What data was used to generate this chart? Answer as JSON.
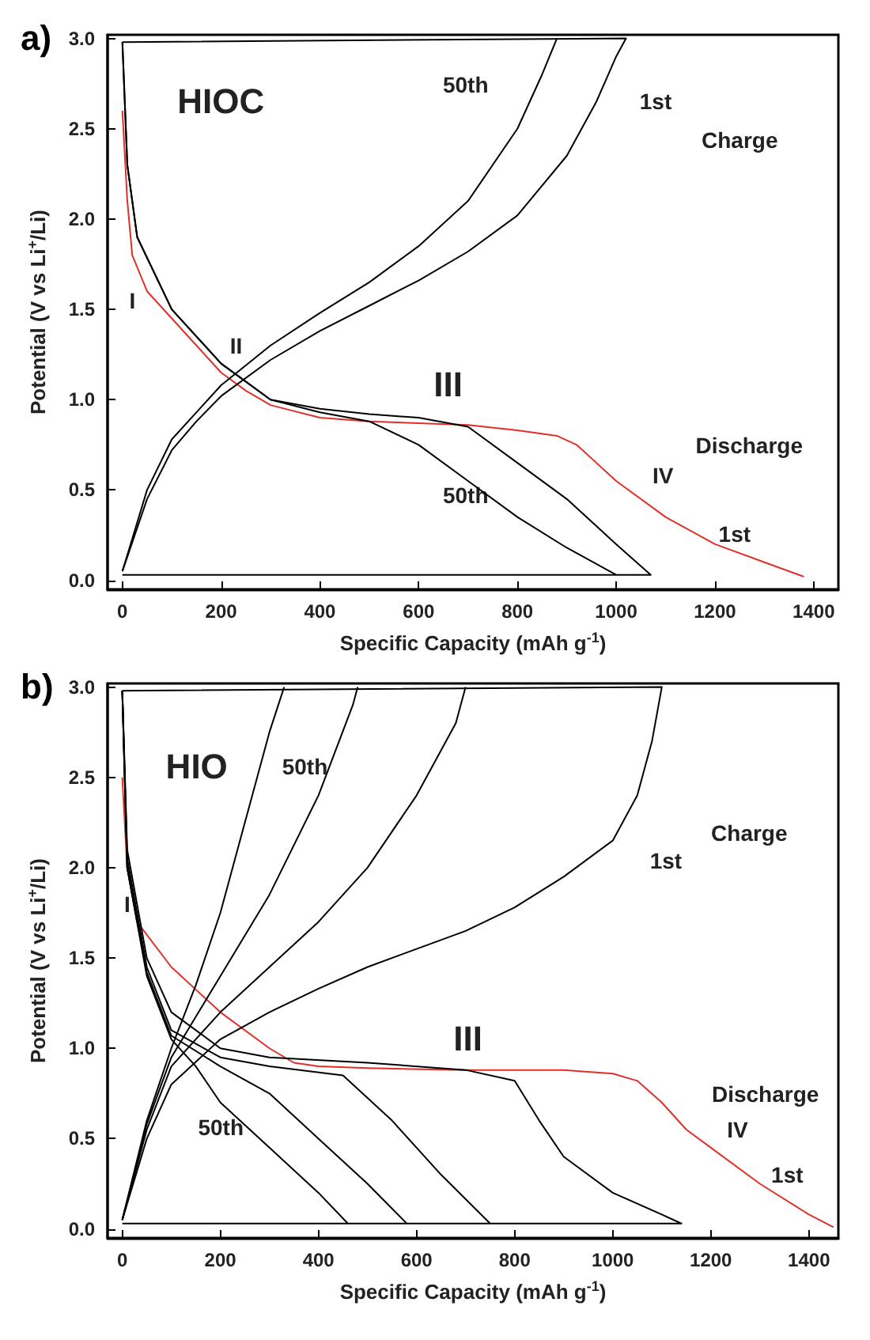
{
  "chart_data": [
    {
      "type": "line",
      "title": "a)",
      "xlabel": "Specific Capacity (mAh g$^{-1}$)",
      "ylabel": "Potential (V vs Li$^{+}$/Li)",
      "xlim": [
        -30,
        1450
      ],
      "ylim": [
        -0.05,
        3.02
      ],
      "xticks": [
        0,
        200,
        400,
        600,
        800,
        1000,
        1200,
        1400
      ],
      "yticks": [
        {
          "value": 0,
          "label": "0.0"
        },
        {
          "value": 0.5,
          "label": "0.5"
        },
        {
          "value": 1,
          "label": "1.0"
        },
        {
          "value": 1.5,
          "label": "1.5"
        },
        {
          "value": 2,
          "label": "2.0"
        },
        {
          "value": 2.5,
          "label": "2.5"
        },
        {
          "value": 3,
          "label": "3.0"
        }
      ],
      "grid": false,
      "marker": "none",
      "line_style": "solid",
      "series": [
        {
          "color": "#e0302a",
          "x": [
            0,
            10,
            20,
            50,
            100,
            150,
            200,
            250,
            300,
            400,
            500,
            600,
            700,
            800,
            880,
            920,
            1000,
            1100,
            1200,
            1300,
            1380
          ],
          "values": [
            2.6,
            2.1,
            1.8,
            1.6,
            1.45,
            1.3,
            1.15,
            1.05,
            0.97,
            0.9,
            0.88,
            0.87,
            0.86,
            0.83,
            0.8,
            0.75,
            0.55,
            0.35,
            0.2,
            0.1,
            0.02
          ]
        },
        {
          "color": "#000000",
          "x": [
            0,
            50,
            100,
            150,
            200,
            300,
            400,
            500,
            600,
            700,
            800,
            900,
            960,
            1000,
            1020,
            0
          ],
          "values": [
            0.05,
            0.45,
            0.72,
            0.88,
            1.02,
            1.22,
            1.38,
            1.52,
            1.66,
            1.82,
            2.02,
            2.35,
            2.65,
            2.9,
            3.0,
            2.98
          ]
        },
        {
          "color": "#000000",
          "x": [
            0,
            50,
            100,
            200,
            300,
            400,
            500,
            600,
            700,
            800,
            850,
            880
          ],
          "values": [
            0.05,
            0.5,
            0.78,
            1.08,
            1.3,
            1.48,
            1.65,
            1.85,
            2.1,
            2.5,
            2.8,
            3.0
          ]
        },
        {
          "color": "#000000",
          "x": [
            0,
            10,
            30,
            100,
            200,
            300,
            400,
            500,
            600,
            700,
            800,
            900,
            1000,
            1070,
            0
          ],
          "values": [
            2.98,
            2.3,
            1.9,
            1.5,
            1.2,
            1.0,
            0.95,
            0.92,
            0.9,
            0.85,
            0.65,
            0.45,
            0.2,
            0.03,
            0.03
          ]
        },
        {
          "color": "#000000",
          "x": [
            0,
            10,
            30,
            100,
            200,
            300,
            400,
            500,
            600,
            700,
            800,
            900,
            1000
          ],
          "values": [
            2.98,
            2.3,
            1.9,
            1.5,
            1.2,
            1.0,
            0.93,
            0.88,
            0.75,
            0.55,
            0.35,
            0.18,
            0.03
          ]
        }
      ],
      "annotations": [
        "HIOC",
        "50th",
        "1st",
        "Charge",
        "I",
        "II",
        "III",
        "Discharge",
        "IV",
        "50th",
        "1st"
      ]
    },
    {
      "type": "line",
      "title": "b)",
      "xlabel": "Specific Capacity (mAh g$^{-1}$)",
      "ylabel": "Potential (V vs Li$^{+}$/Li)",
      "xlim": [
        -30,
        1460
      ],
      "ylim": [
        -0.05,
        3.02
      ],
      "xticks": [
        0,
        200,
        400,
        600,
        800,
        1000,
        1200,
        1400
      ],
      "yticks": [
        {
          "value": 0,
          "label": "0.0"
        },
        {
          "value": 0.5,
          "label": "0.5"
        },
        {
          "value": 1,
          "label": "1.0"
        },
        {
          "value": 1.5,
          "label": "1.5"
        },
        {
          "value": 2,
          "label": "2.0"
        },
        {
          "value": 2.5,
          "label": "2.5"
        },
        {
          "value": 3,
          "label": "3.0"
        }
      ],
      "grid": false,
      "marker": "none",
      "line_style": "solid",
      "series": [
        {
          "color": "#e0302a",
          "x": [
            0,
            10,
            30,
            100,
            200,
            300,
            350,
            400,
            500,
            700,
            900,
            1000,
            1050,
            1100,
            1150,
            1200,
            1300,
            1400,
            1450
          ],
          "values": [
            2.5,
            2.0,
            1.7,
            1.45,
            1.2,
            1.0,
            0.92,
            0.9,
            0.89,
            0.88,
            0.88,
            0.86,
            0.82,
            0.7,
            0.55,
            0.45,
            0.25,
            0.08,
            0.01
          ]
        },
        {
          "color": "#000000",
          "x": [
            0,
            50,
            100,
            200,
            300,
            400,
            500,
            600,
            700,
            800,
            900,
            1000,
            1050,
            1080,
            1100,
            0
          ],
          "values": [
            0.05,
            0.5,
            0.8,
            1.05,
            1.2,
            1.33,
            1.45,
            1.55,
            1.65,
            1.78,
            1.95,
            2.15,
            2.4,
            2.7,
            3.0,
            2.98
          ]
        },
        {
          "color": "#000000",
          "x": [
            0,
            50,
            100,
            200,
            300,
            400,
            500,
            600,
            680,
            700
          ],
          "values": [
            0.05,
            0.55,
            0.9,
            1.2,
            1.45,
            1.7,
            2.0,
            2.4,
            2.8,
            3.0
          ]
        },
        {
          "color": "#000000",
          "x": [
            0,
            50,
            100,
            200,
            300,
            400,
            470,
            480
          ],
          "values": [
            0.05,
            0.58,
            0.95,
            1.4,
            1.85,
            2.4,
            2.9,
            3.0
          ]
        },
        {
          "color": "#000000",
          "x": [
            0,
            50,
            100,
            150,
            200,
            250,
            300,
            330
          ],
          "values": [
            0.05,
            0.6,
            1.0,
            1.35,
            1.75,
            2.25,
            2.75,
            3.0
          ]
        },
        {
          "color": "#000000",
          "x": [
            0,
            10,
            50,
            100,
            200,
            300,
            500,
            700,
            800,
            850,
            900,
            1000,
            1100,
            1140,
            0
          ],
          "values": [
            2.98,
            2.1,
            1.5,
            1.2,
            1.0,
            0.95,
            0.92,
            0.88,
            0.82,
            0.6,
            0.4,
            0.2,
            0.08,
            0.03,
            0.03
          ]
        },
        {
          "color": "#000000",
          "x": [
            0,
            10,
            50,
            100,
            200,
            300,
            450,
            550,
            650,
            750
          ],
          "values": [
            2.98,
            2.05,
            1.45,
            1.1,
            0.95,
            0.9,
            0.85,
            0.6,
            0.3,
            0.03
          ]
        },
        {
          "color": "#000000",
          "x": [
            0,
            10,
            50,
            100,
            200,
            300,
            400,
            500,
            580
          ],
          "values": [
            2.98,
            2.0,
            1.42,
            1.07,
            0.9,
            0.75,
            0.5,
            0.25,
            0.03
          ]
        },
        {
          "color": "#000000",
          "x": [
            0,
            10,
            50,
            100,
            150,
            200,
            300,
            400,
            460
          ],
          "values": [
            2.98,
            2.0,
            1.4,
            1.05,
            0.9,
            0.7,
            0.45,
            0.2,
            0.03
          ]
        }
      ],
      "annotations": [
        "HIO",
        "50th",
        "1st",
        "Charge",
        {
          "text": "I",
          "x": 10,
          "y": 1.8
        },
        "III",
        "Discharge",
        "IV",
        "50th",
        "1st"
      ]
    }
  ]
}
